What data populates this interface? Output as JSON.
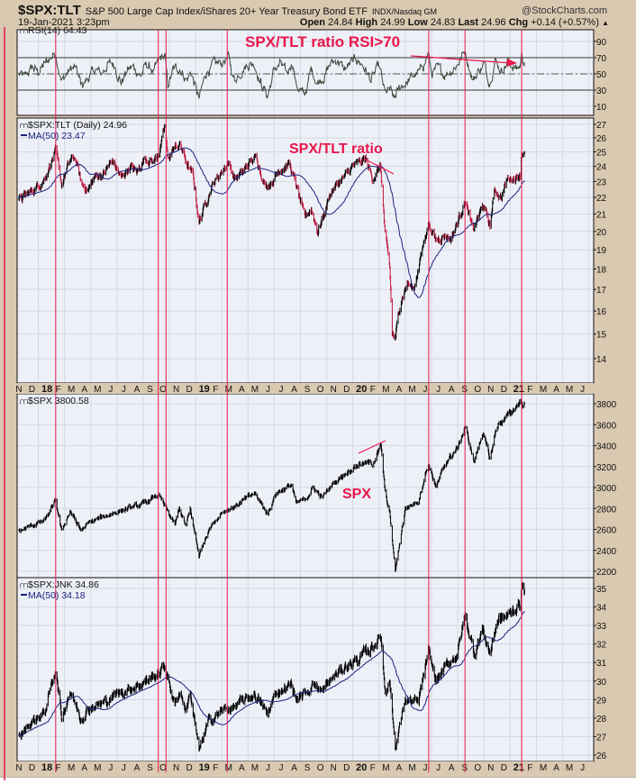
{
  "header": {
    "symbol": "$SPX:TLT",
    "description": "S&P 500 Large Cap Index/iShares 20+ Year Treasury Bond ETF",
    "exchange": "INDX/Nasdaq GM",
    "brand": "@StockCharts.com",
    "date": "19-Jan-2021 3:23pm",
    "open_label": "Open",
    "open": "24.84",
    "high_label": "High",
    "high": "24.99",
    "low_label": "Low",
    "low": "24.83",
    "last_label": "Last",
    "last": "24.96",
    "chg_label": "Chg",
    "chg": "+0.14 (+0.57%)",
    "chg_arrow": "▲"
  },
  "colors": {
    "background": "#d9c9b1",
    "panel": "#eef0f8",
    "bars_up": "#000000",
    "bars_down": "#c0143c",
    "ma": "#1a237e",
    "annotation": "#e8174a",
    "rsi": "#3a4a3a"
  },
  "x_axis": {
    "labels": [
      "N",
      "D",
      "18",
      "F",
      "M",
      "A",
      "M",
      "J",
      "J",
      "A",
      "S",
      "O",
      "N",
      "D",
      "19",
      "F",
      "M",
      "A",
      "M",
      "J",
      "J",
      "A",
      "S",
      "O",
      "N",
      "D",
      "20",
      "F",
      "M",
      "A",
      "M",
      "J",
      "J",
      "A",
      "S",
      "O",
      "N",
      "D",
      "21",
      "F",
      "M",
      "A",
      "M",
      "J"
    ],
    "bold_labels": [
      "18",
      "19",
      "20",
      "21"
    ]
  },
  "annotations": {
    "rsi_note": "SPX/TLT ratio RSI>70",
    "ratio_note": "SPX/TLT ratio",
    "spx_note": "SPX",
    "vertical_markers": [
      "2018-01-26",
      "2018-09-20",
      "2018-10-08",
      "2019-02-26",
      "2020-06-09",
      "2020-09-02",
      "2021-01-12"
    ]
  },
  "chart_data": [
    {
      "type": "line",
      "legend": "RSI(14) 64.43",
      "ylim": [
        0,
        100
      ],
      "y_ticks": [
        "10",
        "30",
        "50",
        "70",
        "90"
      ],
      "reference_lines": [
        30,
        50,
        70
      ],
      "points": [
        [
          "2017-11-01",
          50
        ],
        [
          "2017-11-15",
          45
        ],
        [
          "2017-12-01",
          58
        ],
        [
          "2017-12-15",
          52
        ],
        [
          "2018-01-01",
          62
        ],
        [
          "2018-01-26",
          77
        ],
        [
          "2018-02-08",
          40
        ],
        [
          "2018-02-25",
          55
        ],
        [
          "2018-03-10",
          58
        ],
        [
          "2018-03-25",
          35
        ],
        [
          "2018-04-10",
          45
        ],
        [
          "2018-04-25",
          55
        ],
        [
          "2018-05-10",
          50
        ],
        [
          "2018-05-25",
          62
        ],
        [
          "2018-06-10",
          62
        ],
        [
          "2018-06-25",
          40
        ],
        [
          "2018-07-10",
          55
        ],
        [
          "2018-07-25",
          58
        ],
        [
          "2018-08-10",
          48
        ],
        [
          "2018-08-25",
          62
        ],
        [
          "2018-09-10",
          52
        ],
        [
          "2018-09-25",
          68
        ],
        [
          "2018-10-05",
          72
        ],
        [
          "2018-10-12",
          35
        ],
        [
          "2018-10-25",
          55
        ],
        [
          "2018-11-10",
          58
        ],
        [
          "2018-11-25",
          42
        ],
        [
          "2018-12-05",
          52
        ],
        [
          "2018-12-24",
          18
        ],
        [
          "2019-01-10",
          52
        ],
        [
          "2019-01-25",
          60
        ],
        [
          "2019-02-10",
          62
        ],
        [
          "2019-02-28",
          70
        ],
        [
          "2019-03-15",
          42
        ],
        [
          "2019-03-31",
          55
        ],
        [
          "2019-04-15",
          62
        ],
        [
          "2019-04-30",
          63
        ],
        [
          "2019-05-15",
          40
        ],
        [
          "2019-05-31",
          22
        ],
        [
          "2019-06-15",
          55
        ],
        [
          "2019-06-30",
          62
        ],
        [
          "2019-07-15",
          48
        ],
        [
          "2019-07-28",
          68
        ],
        [
          "2019-08-05",
          38
        ],
        [
          "2019-08-25",
          22
        ],
        [
          "2019-09-10",
          55
        ],
        [
          "2019-09-25",
          40
        ],
        [
          "2019-10-10",
          48
        ],
        [
          "2019-10-25",
          62
        ],
        [
          "2019-11-10",
          68
        ],
        [
          "2019-11-25",
          55
        ],
        [
          "2019-12-10",
          62
        ],
        [
          "2019-12-25",
          68
        ],
        [
          "2020-01-10",
          60
        ],
        [
          "2020-01-28",
          42
        ],
        [
          "2020-02-15",
          60
        ],
        [
          "2020-02-28",
          25
        ],
        [
          "2020-03-10",
          30
        ],
        [
          "2020-03-20",
          18
        ],
        [
          "2020-04-05",
          35
        ],
        [
          "2020-04-20",
          40
        ],
        [
          "2020-05-05",
          48
        ],
        [
          "2020-05-20",
          52
        ],
        [
          "2020-06-08",
          76
        ],
        [
          "2020-06-15",
          50
        ],
        [
          "2020-06-30",
          55
        ],
        [
          "2020-07-15",
          50
        ],
        [
          "2020-07-31",
          55
        ],
        [
          "2020-08-15",
          62
        ],
        [
          "2020-09-02",
          79
        ],
        [
          "2020-09-20",
          42
        ],
        [
          "2020-10-05",
          55
        ],
        [
          "2020-10-15",
          62
        ],
        [
          "2020-10-30",
          40
        ],
        [
          "2020-11-10",
          68
        ],
        [
          "2020-11-25",
          55
        ],
        [
          "2020-12-10",
          65
        ],
        [
          "2020-12-31",
          56
        ],
        [
          "2021-01-08",
          60
        ],
        [
          "2021-01-12",
          74
        ],
        [
          "2021-01-19",
          64.43
        ]
      ]
    },
    {
      "type": "bar",
      "legend": "$SPX:TLT (Daily) 24.96",
      "ma_legend": "MA(50) 23.47",
      "scale": "log",
      "ylim": [
        13.2,
        27.4
      ],
      "y_ticks": [
        "14",
        "15",
        "16",
        "17",
        "18",
        "19",
        "20",
        "21",
        "22",
        "23",
        "24",
        "25",
        "26",
        "27"
      ],
      "points": [
        [
          "2017-11-01",
          21.8
        ],
        [
          "2017-11-20",
          22.2
        ],
        [
          "2017-12-10",
          22.6
        ],
        [
          "2017-12-31",
          23.2
        ],
        [
          "2018-01-15",
          24.3
        ],
        [
          "2018-01-26",
          25.0
        ],
        [
          "2018-02-08",
          22.8
        ],
        [
          "2018-02-25",
          24.3
        ],
        [
          "2018-03-10",
          24.6
        ],
        [
          "2018-03-25",
          22.8
        ],
        [
          "2018-04-10",
          22.5
        ],
        [
          "2018-04-25",
          23.3
        ],
        [
          "2018-05-15",
          23.5
        ],
        [
          "2018-06-05",
          24.4
        ],
        [
          "2018-06-25",
          23.2
        ],
        [
          "2018-07-15",
          24.0
        ],
        [
          "2018-08-01",
          23.6
        ],
        [
          "2018-08-20",
          24.6
        ],
        [
          "2018-09-10",
          24.3
        ],
        [
          "2018-09-25",
          25.3
        ],
        [
          "2018-10-05",
          26.8
        ],
        [
          "2018-10-12",
          24.5
        ],
        [
          "2018-10-25",
          25.2
        ],
        [
          "2018-11-10",
          25.5
        ],
        [
          "2018-11-25",
          24.2
        ],
        [
          "2018-12-10",
          23.3
        ],
        [
          "2018-12-24",
          20.5
        ],
        [
          "2019-01-10",
          21.8
        ],
        [
          "2019-01-25",
          22.8
        ],
        [
          "2019-02-15",
          23.7
        ],
        [
          "2019-02-28",
          24.3
        ],
        [
          "2019-03-15",
          23.2
        ],
        [
          "2019-04-01",
          23.5
        ],
        [
          "2019-04-20",
          24.3
        ],
        [
          "2019-05-05",
          24.6
        ],
        [
          "2019-05-25",
          22.7
        ],
        [
          "2019-06-10",
          23.0
        ],
        [
          "2019-06-28",
          23.8
        ],
        [
          "2019-07-20",
          24.2
        ],
        [
          "2019-08-05",
          22.8
        ],
        [
          "2019-08-25",
          20.8
        ],
        [
          "2019-09-10",
          21.3
        ],
        [
          "2019-09-25",
          20.0
        ],
        [
          "2019-10-10",
          21.0
        ],
        [
          "2019-10-25",
          22.3
        ],
        [
          "2019-11-15",
          23.0
        ],
        [
          "2019-11-30",
          23.4
        ],
        [
          "2019-12-15",
          24.0
        ],
        [
          "2019-12-31",
          24.2
        ],
        [
          "2020-01-15",
          24.5
        ],
        [
          "2020-01-31",
          23.2
        ],
        [
          "2020-02-18",
          24.0
        ],
        [
          "2020-02-28",
          19.8
        ],
        [
          "2020-03-10",
          18.0
        ],
        [
          "2020-03-16",
          15.0
        ],
        [
          "2020-03-23",
          14.8
        ],
        [
          "2020-04-05",
          16.5
        ],
        [
          "2020-04-20",
          17.3
        ],
        [
          "2020-05-05",
          17.0
        ],
        [
          "2020-05-20",
          18.5
        ],
        [
          "2020-06-08",
          20.5
        ],
        [
          "2020-06-25",
          19.5
        ],
        [
          "2020-07-15",
          19.8
        ],
        [
          "2020-07-31",
          19.6
        ],
        [
          "2020-08-15",
          20.5
        ],
        [
          "2020-09-02",
          21.8
        ],
        [
          "2020-09-20",
          20.0
        ],
        [
          "2020-10-05",
          21.0
        ],
        [
          "2020-10-15",
          21.5
        ],
        [
          "2020-10-30",
          20.3
        ],
        [
          "2020-11-10",
          22.5
        ],
        [
          "2020-11-25",
          22.0
        ],
        [
          "2020-12-10",
          23.2
        ],
        [
          "2020-12-31",
          23.3
        ],
        [
          "2021-01-08",
          23.5
        ],
        [
          "2021-01-12",
          25.0
        ],
        [
          "2021-01-19",
          24.96
        ]
      ]
    },
    {
      "type": "bar",
      "legend": "$SPX 3800.58",
      "scale": "linear",
      "ylim": [
        2100,
        3900
      ],
      "y_ticks": [
        "2200",
        "2400",
        "2600",
        "2800",
        "3000",
        "3200",
        "3400",
        "3600",
        "3800"
      ],
      "points": [
        [
          "2017-11-01",
          2580
        ],
        [
          "2017-12-01",
          2640
        ],
        [
          "2017-12-31",
          2680
        ],
        [
          "2018-01-26",
          2870
        ],
        [
          "2018-02-08",
          2580
        ],
        [
          "2018-02-26",
          2780
        ],
        [
          "2018-03-23",
          2590
        ],
        [
          "2018-04-15",
          2670
        ],
        [
          "2018-05-15",
          2720
        ],
        [
          "2018-06-15",
          2770
        ],
        [
          "2018-07-15",
          2800
        ],
        [
          "2018-08-15",
          2840
        ],
        [
          "2018-09-20",
          2930
        ],
        [
          "2018-10-10",
          2780
        ],
        [
          "2018-10-29",
          2640
        ],
        [
          "2018-11-08",
          2800
        ],
        [
          "2018-11-23",
          2630
        ],
        [
          "2018-12-03",
          2790
        ],
        [
          "2018-12-24",
          2350
        ],
        [
          "2019-01-15",
          2600
        ],
        [
          "2019-02-15",
          2770
        ],
        [
          "2019-03-15",
          2820
        ],
        [
          "2019-04-30",
          2945
        ],
        [
          "2019-05-31",
          2750
        ],
        [
          "2019-06-20",
          2950
        ],
        [
          "2019-07-26",
          3025
        ],
        [
          "2019-08-05",
          2845
        ],
        [
          "2019-08-25",
          2880
        ],
        [
          "2019-09-15",
          3000
        ],
        [
          "2019-10-05",
          2900
        ],
        [
          "2019-10-31",
          3040
        ],
        [
          "2019-11-29",
          3140
        ],
        [
          "2019-12-31",
          3230
        ],
        [
          "2020-01-31",
          3230
        ],
        [
          "2020-02-19",
          3390
        ],
        [
          "2020-02-28",
          2950
        ],
        [
          "2020-03-10",
          2750
        ],
        [
          "2020-03-23",
          2200
        ],
        [
          "2020-04-15",
          2800
        ],
        [
          "2020-05-15",
          2870
        ],
        [
          "2020-06-08",
          3230
        ],
        [
          "2020-06-26",
          3000
        ],
        [
          "2020-07-20",
          3250
        ],
        [
          "2020-08-15",
          3370
        ],
        [
          "2020-09-02",
          3580
        ],
        [
          "2020-09-23",
          3240
        ],
        [
          "2020-10-12",
          3530
        ],
        [
          "2020-10-30",
          3270
        ],
        [
          "2020-11-15",
          3590
        ],
        [
          "2020-12-15",
          3700
        ],
        [
          "2021-01-08",
          3820
        ],
        [
          "2021-01-19",
          3800
        ]
      ]
    },
    {
      "type": "bar",
      "legend": "$SPX:JNK 34.86",
      "ma_legend": "MA(50) 34.18",
      "scale": "linear",
      "ylim": [
        25.6,
        35.6
      ],
      "y_ticks": [
        "26",
        "27",
        "28",
        "29",
        "30",
        "31",
        "32",
        "33",
        "34",
        "35"
      ],
      "points": [
        [
          "2017-11-01",
          27.0
        ],
        [
          "2017-12-01",
          27.8
        ],
        [
          "2017-12-31",
          28.3
        ],
        [
          "2018-01-26",
          30.7
        ],
        [
          "2018-02-08",
          28.0
        ],
        [
          "2018-02-26",
          29.5
        ],
        [
          "2018-03-23",
          28.0
        ],
        [
          "2018-04-15",
          28.6
        ],
        [
          "2018-05-15",
          28.8
        ],
        [
          "2018-06-15",
          29.3
        ],
        [
          "2018-07-15",
          29.6
        ],
        [
          "2018-08-15",
          29.9
        ],
        [
          "2018-09-20",
          30.4
        ],
        [
          "2018-10-05",
          30.8
        ],
        [
          "2018-10-29",
          28.7
        ],
        [
          "2018-11-10",
          29.5
        ],
        [
          "2018-11-23",
          28.4
        ],
        [
          "2018-12-03",
          29.4
        ],
        [
          "2018-12-24",
          26.2
        ],
        [
          "2019-01-15",
          27.8
        ],
        [
          "2019-02-15",
          28.4
        ],
        [
          "2019-03-15",
          28.6
        ],
        [
          "2019-04-30",
          29.3
        ],
        [
          "2019-05-31",
          28.2
        ],
        [
          "2019-06-20",
          29.4
        ],
        [
          "2019-07-26",
          29.8
        ],
        [
          "2019-08-05",
          29.0
        ],
        [
          "2019-08-25",
          29.3
        ],
        [
          "2019-09-15",
          29.9
        ],
        [
          "2019-10-05",
          29.4
        ],
        [
          "2019-10-31",
          30.2
        ],
        [
          "2019-11-29",
          30.8
        ],
        [
          "2019-12-31",
          31.2
        ],
        [
          "2020-01-20",
          31.6
        ],
        [
          "2020-02-19",
          32.4
        ],
        [
          "2020-02-28",
          29.5
        ],
        [
          "2020-03-10",
          30.0
        ],
        [
          "2020-03-23",
          26.4
        ],
        [
          "2020-04-15",
          29.0
        ],
        [
          "2020-05-15",
          28.8
        ],
        [
          "2020-06-08",
          31.5
        ],
        [
          "2020-06-26",
          30.0
        ],
        [
          "2020-07-20",
          30.8
        ],
        [
          "2020-08-15",
          31.5
        ],
        [
          "2020-09-02",
          33.5
        ],
        [
          "2020-09-23",
          31.5
        ],
        [
          "2020-10-12",
          32.8
        ],
        [
          "2020-10-30",
          31.5
        ],
        [
          "2020-11-15",
          33.2
        ],
        [
          "2020-12-15",
          33.6
        ],
        [
          "2021-01-08",
          34.2
        ],
        [
          "2021-01-12",
          35.1
        ],
        [
          "2021-01-19",
          34.86
        ]
      ]
    }
  ]
}
